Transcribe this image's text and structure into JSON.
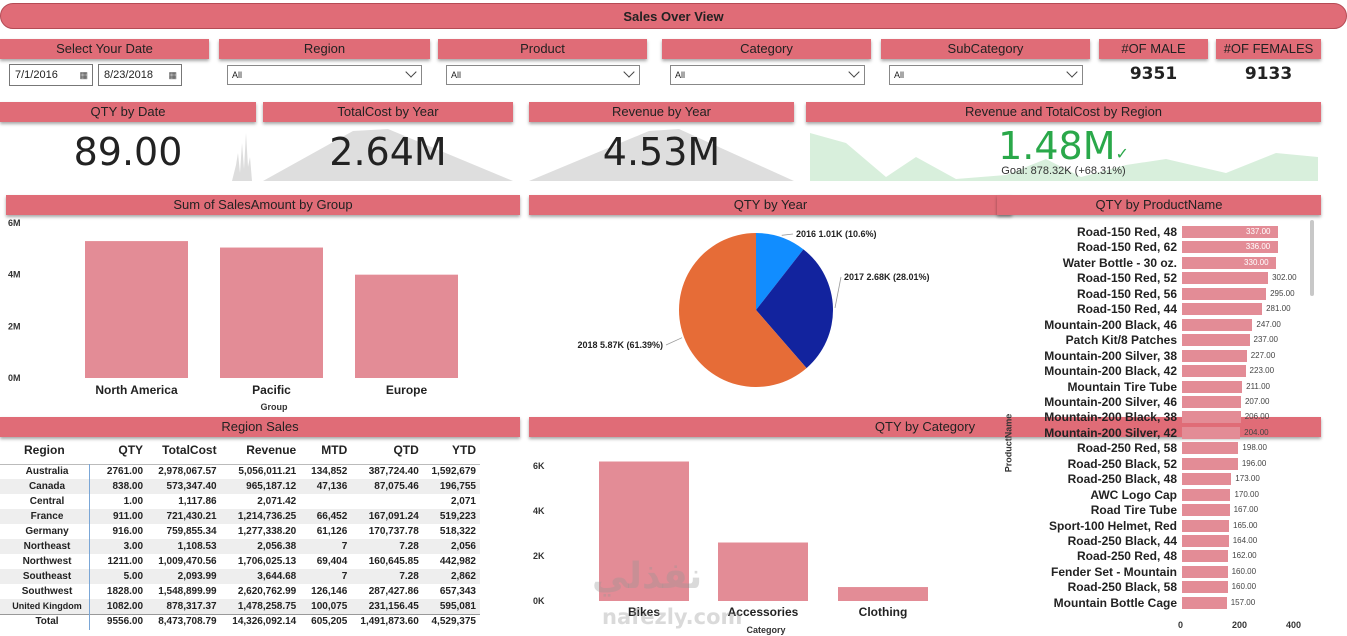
{
  "title": "Sales Over View",
  "filters": {
    "date_label": "Select Your Date",
    "date_start": "7/1/2016",
    "date_end": "8/23/2018",
    "region_label": "Region",
    "region_value": "All",
    "product_label": "Product",
    "product_value": "All",
    "category_label": "Category",
    "category_value": "All",
    "subcategory_label": "SubCategory",
    "subcategory_value": "All"
  },
  "counts": {
    "male_label": "#OF MALE",
    "male_value": "9351",
    "female_label": "#OF FEMALES",
    "female_value": "9133"
  },
  "kpis": {
    "qty_label": "QTY by Date",
    "qty_value": "89.00",
    "cost_label": "TotalCost by Year",
    "cost_value": "2.64M",
    "revenue_label": "Revenue by Year",
    "revenue_value": "4.53M",
    "region_label": "Revenue and TotalCost by Region",
    "region_value": "1.48M",
    "region_goal": "Goal: 878.32K (+68.31%)",
    "region_color": "#2aa84a"
  },
  "sales_group": {
    "title": "Sum of SalesAmount by Group",
    "xlabel": "Group",
    "ticks": [
      "6M",
      "4M",
      "2M",
      "0M"
    ],
    "chart_data": {
      "type": "bar",
      "categories": [
        "North America",
        "Pacific",
        "Europe"
      ],
      "values": [
        5.3,
        5.05,
        4.0
      ],
      "ylim": [
        0,
        6
      ],
      "xlabel": "Group"
    }
  },
  "qty_year": {
    "title": "QTY by Year",
    "chart_data": {
      "type": "pie",
      "labels": [
        "2016",
        "2017",
        "2018"
      ],
      "values": [
        1.01,
        2.68,
        5.87
      ],
      "display": [
        "2016 1.01K (10.6%)",
        "2017 2.68K (28.01%)",
        "2018 5.87K (61.39%)"
      ],
      "colors": [
        "#118dff",
        "#12239e",
        "#e66c37"
      ]
    }
  },
  "region_sales": {
    "title": "Region Sales",
    "columns": [
      "Region",
      "QTY",
      "TotalCost",
      "Revenue",
      "MTD",
      "QTD",
      "YTD"
    ],
    "rows": [
      [
        "Australia",
        "2761.00",
        "2,978,067.57",
        "5,056,011.21",
        "134,852",
        "387,724.40",
        "1,592,679"
      ],
      [
        "Canada",
        "838.00",
        "573,347.40",
        "965,187.12",
        "47,136",
        "87,075.46",
        "196,755"
      ],
      [
        "Central",
        "1.00",
        "1,117.86",
        "2,071.42",
        "",
        "",
        "2,071"
      ],
      [
        "France",
        "911.00",
        "721,430.21",
        "1,214,736.25",
        "66,452",
        "167,091.24",
        "519,223"
      ],
      [
        "Germany",
        "916.00",
        "759,855.34",
        "1,277,338.20",
        "61,126",
        "170,737.78",
        "518,322"
      ],
      [
        "Northeast",
        "3.00",
        "1,108.53",
        "2,056.38",
        "7",
        "7.28",
        "2,056"
      ],
      [
        "Northwest",
        "1211.00",
        "1,009,470.56",
        "1,706,025.13",
        "69,404",
        "160,645.85",
        "442,982"
      ],
      [
        "Southeast",
        "5.00",
        "2,093.99",
        "3,644.68",
        "7",
        "7.28",
        "2,862"
      ],
      [
        "Southwest",
        "1828.00",
        "1,548,899.99",
        "2,620,762.99",
        "126,146",
        "287,427.86",
        "657,343"
      ],
      [
        "United Kingdom",
        "1082.00",
        "878,317.37",
        "1,478,258.75",
        "100,075",
        "231,156.45",
        "595,081"
      ]
    ],
    "total": [
      "Total",
      "9556.00",
      "8,473,708.79",
      "14,326,092.14",
      "605,205",
      "1,491,873.60",
      "4,529,375"
    ]
  },
  "qty_category": {
    "title": "QTY by Category",
    "xlabel": "Category",
    "ticks": [
      "6K",
      "4K",
      "2K",
      "0K"
    ],
    "chart_data": {
      "type": "bar",
      "categories": [
        "Bikes",
        "Accessories",
        "Clothing"
      ],
      "values": [
        6200,
        2600,
        620
      ],
      "ylim": [
        0,
        6000
      ],
      "xlabel": "Category"
    }
  },
  "qty_product": {
    "title": "QTY by ProductName",
    "ylabel": "ProductName",
    "ticks": [
      "0",
      "200",
      "400"
    ],
    "chart_data": {
      "type": "bar",
      "orientation": "horizontal",
      "xlim": [
        0,
        400
      ],
      "categories": [
        "Road-150 Red, 48",
        "Road-150 Red, 62",
        "Water Bottle - 30 oz.",
        "Road-150 Red, 52",
        "Road-150 Red, 56",
        "Road-150 Red, 44",
        "Mountain-200 Black, 46",
        "Patch Kit/8 Patches",
        "Mountain-200 Silver, 38",
        "Mountain-200 Black, 42",
        "Mountain Tire Tube",
        "Mountain-200 Silver, 46",
        "Mountain-200 Black, 38",
        "Mountain-200 Silver, 42",
        "Road-250 Red, 58",
        "Road-250 Black, 52",
        "Road-250 Black, 48",
        "AWC Logo Cap",
        "Road Tire Tube",
        "Sport-100 Helmet, Red",
        "Road-250 Black, 44",
        "Road-250 Red, 48",
        "Fender Set - Mountain",
        "Road-250 Black, 58",
        "Mountain Bottle Cage"
      ],
      "values": [
        337,
        336,
        330,
        302,
        295,
        281,
        247,
        237,
        227,
        223,
        211,
        207,
        206,
        204,
        198,
        196,
        173,
        170,
        167,
        165,
        164,
        162,
        160,
        160,
        157
      ],
      "labels": [
        "337.00",
        "336.00",
        "330.00",
        "302.00",
        "295.00",
        "281.00",
        "247.00",
        "237.00",
        "227.00",
        "223.00",
        "211.00",
        "207.00",
        "206.00",
        "204.00",
        "198.00",
        "196.00",
        "173.00",
        "170.00",
        "167.00",
        "165.00",
        "164.00",
        "162.00",
        "160.00",
        "160.00",
        "157.00"
      ]
    }
  },
  "watermark": {
    "arabic": "نفذلي",
    "latin": "nafezly.com"
  }
}
